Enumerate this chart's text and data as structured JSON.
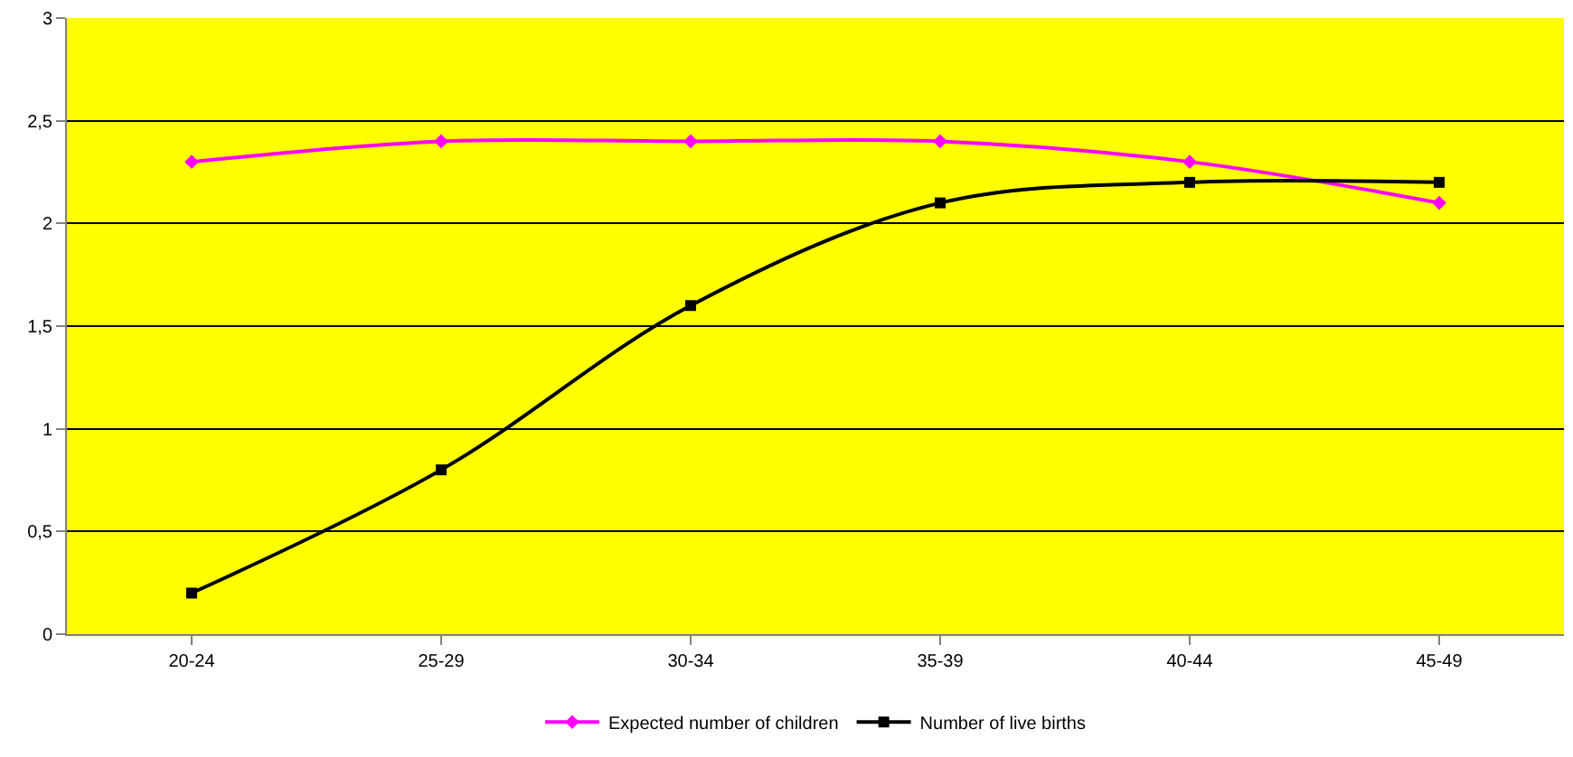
{
  "chart_data": {
    "type": "line",
    "categories": [
      "20-24",
      "25-29",
      "30-34",
      "35-39",
      "40-44",
      "45-49"
    ],
    "series": [
      {
        "name": "Expected number of children",
        "color": "#ff00ff",
        "marker": "diamond",
        "values": [
          2.3,
          2.4,
          2.4,
          2.4,
          2.3,
          2.1
        ]
      },
      {
        "name": "Number of live births",
        "color": "#000000",
        "marker": "square",
        "values": [
          0.2,
          0.8,
          1.6,
          2.1,
          2.2,
          2.2
        ]
      }
    ],
    "ylim": [
      0,
      3
    ],
    "yticks": [
      0,
      {
        "value": 0.5,
        "label": "0,5"
      },
      1,
      {
        "value": 1.5,
        "label": "1,5"
      },
      2,
      {
        "value": 2.5,
        "label": "2,5"
      },
      3
    ],
    "grid": "y",
    "legend": "bottom",
    "line_style": "solid"
  }
}
